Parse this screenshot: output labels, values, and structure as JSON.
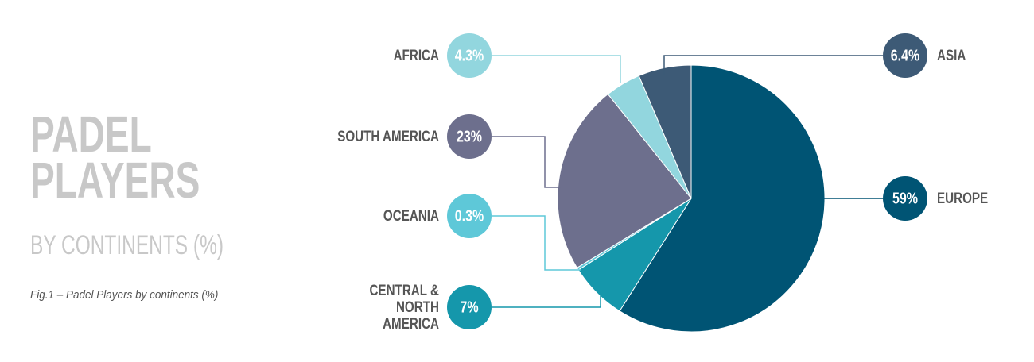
{
  "chart_data": {
    "type": "pie",
    "title": "PADEL PLAYERS",
    "subtitle": "BY CONTINENTS (%)",
    "caption": "Fig.1 – Padel Players by continents (%)",
    "categories": [
      "EUROPE",
      "CENTRAL & NORTH AMERICA",
      "OCEANIA",
      "SOUTH AMERICA",
      "AFRICA",
      "ASIA"
    ],
    "values": [
      59,
      7,
      0.3,
      23,
      4.3,
      6.4
    ],
    "value_labels": [
      "59%",
      "7%",
      "0.3%",
      "23%",
      "4.3%",
      "6.4%"
    ],
    "colors": [
      "#005474",
      "#1597ab",
      "#5ec8d8",
      "#6d6f8d",
      "#92d6de",
      "#3d5a76"
    ]
  }
}
